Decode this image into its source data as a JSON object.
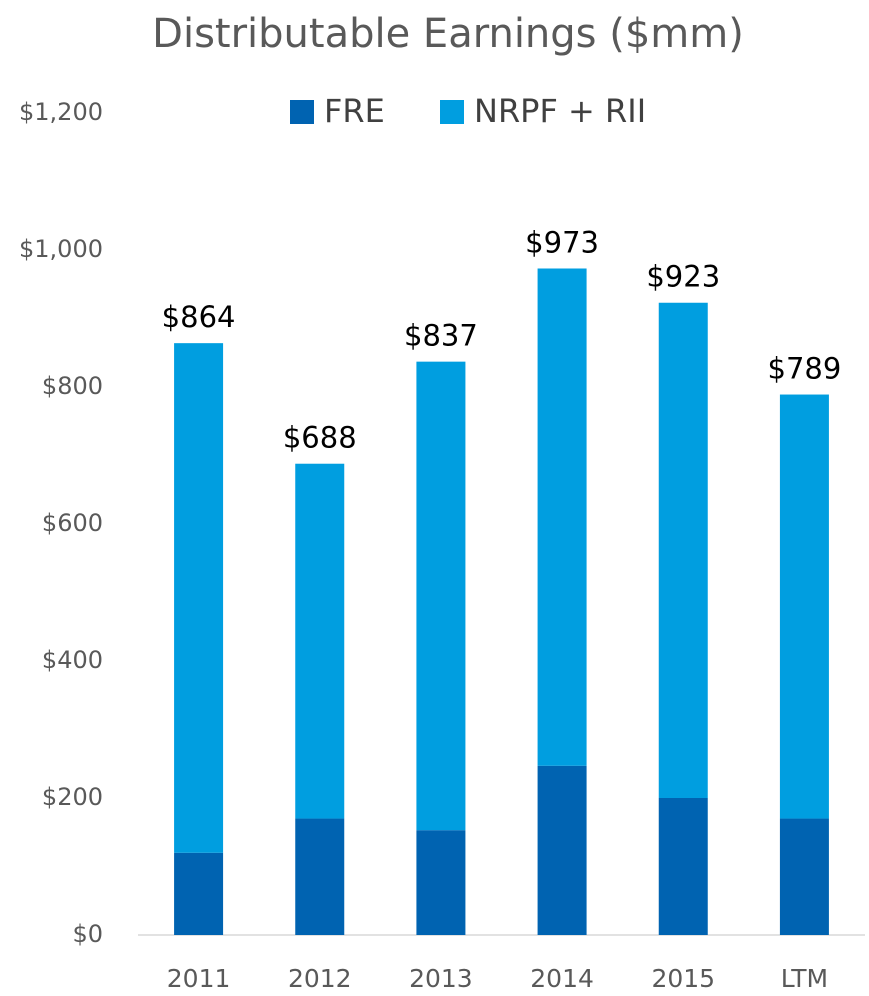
{
  "chart_data": {
    "type": "stacked_bar",
    "title": "Distributable Earnings ($mm)",
    "categories": [
      "2011",
      "2012",
      "2013",
      "2014",
      "2015",
      "LTM"
    ],
    "series": [
      {
        "name": "FRE",
        "color": "#0063b1",
        "values": [
          120,
          170,
          153,
          247,
          200,
          170
        ]
      },
      {
        "name": "NRPF + RII",
        "color": "#009ee0",
        "values": [
          744,
          518,
          684,
          726,
          723,
          619
        ]
      }
    ],
    "total_labels": [
      "$864",
      "$688",
      "$837",
      "$973",
      "$923",
      "$789"
    ],
    "ylim": [
      0,
      1200
    ],
    "yticks": [
      {
        "value": 0,
        "label": "$0"
      },
      {
        "value": 200,
        "label": "$200"
      },
      {
        "value": 400,
        "label": "$400"
      },
      {
        "value": 600,
        "label": "$600"
      },
      {
        "value": 800,
        "label": "$800"
      },
      {
        "value": 1000,
        "label": "$1,000"
      },
      {
        "value": 1200,
        "label": "$1,200"
      }
    ],
    "legend": "top"
  }
}
